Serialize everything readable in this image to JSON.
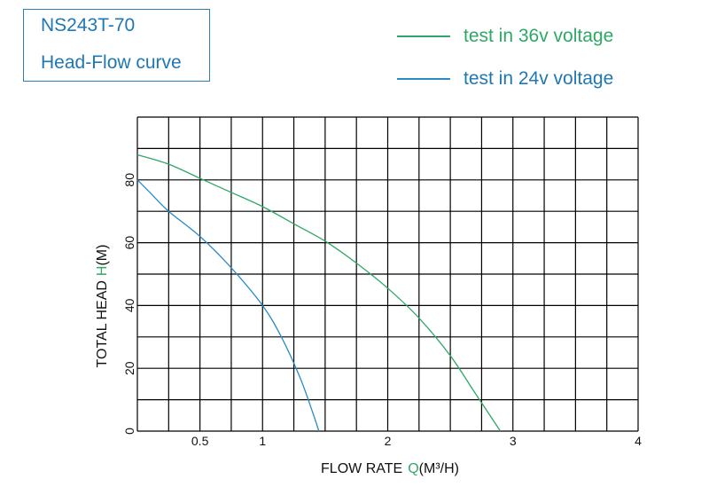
{
  "title_box": {
    "line1": "NS243T-70",
    "line2": "Head-Flow curve"
  },
  "colors": {
    "series_36v": "#2ea866",
    "series_24v": "#2a8bc4",
    "title": "#1f77b4",
    "grid": "#000000"
  },
  "chart_data": {
    "type": "line",
    "title": "",
    "xlabel": "FLOW RATE",
    "xlabel_symbol": "Q",
    "xlabel_unit": "(M³/H)",
    "ylabel": "TOTAL HEAD",
    "ylabel_symbol": "H",
    "ylabel_unit": "(M)",
    "xlim": [
      0,
      4
    ],
    "ylim": [
      0,
      100
    ],
    "x_ticks": [
      {
        "value": 0.5,
        "label": "0.5"
      },
      {
        "value": 1,
        "label": "1"
      },
      {
        "value": 2,
        "label": "2"
      },
      {
        "value": 3,
        "label": "3"
      },
      {
        "value": 4,
        "label": "4"
      }
    ],
    "y_ticks": [
      {
        "value": 0,
        "label": "0"
      },
      {
        "value": 20,
        "label": "20"
      },
      {
        "value": 40,
        "label": "40"
      },
      {
        "value": 60,
        "label": "60"
      },
      {
        "value": 80,
        "label": "80"
      }
    ],
    "grid": true,
    "legend_position": "top-right",
    "series": [
      {
        "name": "test in 36v voltage",
        "color": "#2ea866",
        "x": [
          0,
          0.25,
          0.5,
          0.75,
          1.0,
          1.25,
          1.5,
          1.75,
          2.0,
          2.25,
          2.5,
          2.7,
          2.9
        ],
        "y": [
          88,
          85,
          80.5,
          76,
          71.5,
          66,
          60.5,
          53.5,
          45.5,
          36,
          24,
          12,
          0
        ]
      },
      {
        "name": "test in 24v voltage",
        "color": "#2a8bc4",
        "x": [
          0,
          0.1,
          0.25,
          0.5,
          0.75,
          1.0,
          1.15,
          1.3,
          1.4,
          1.45
        ],
        "y": [
          80,
          76,
          70,
          62,
          52,
          40,
          30,
          17,
          6,
          0
        ]
      }
    ]
  }
}
